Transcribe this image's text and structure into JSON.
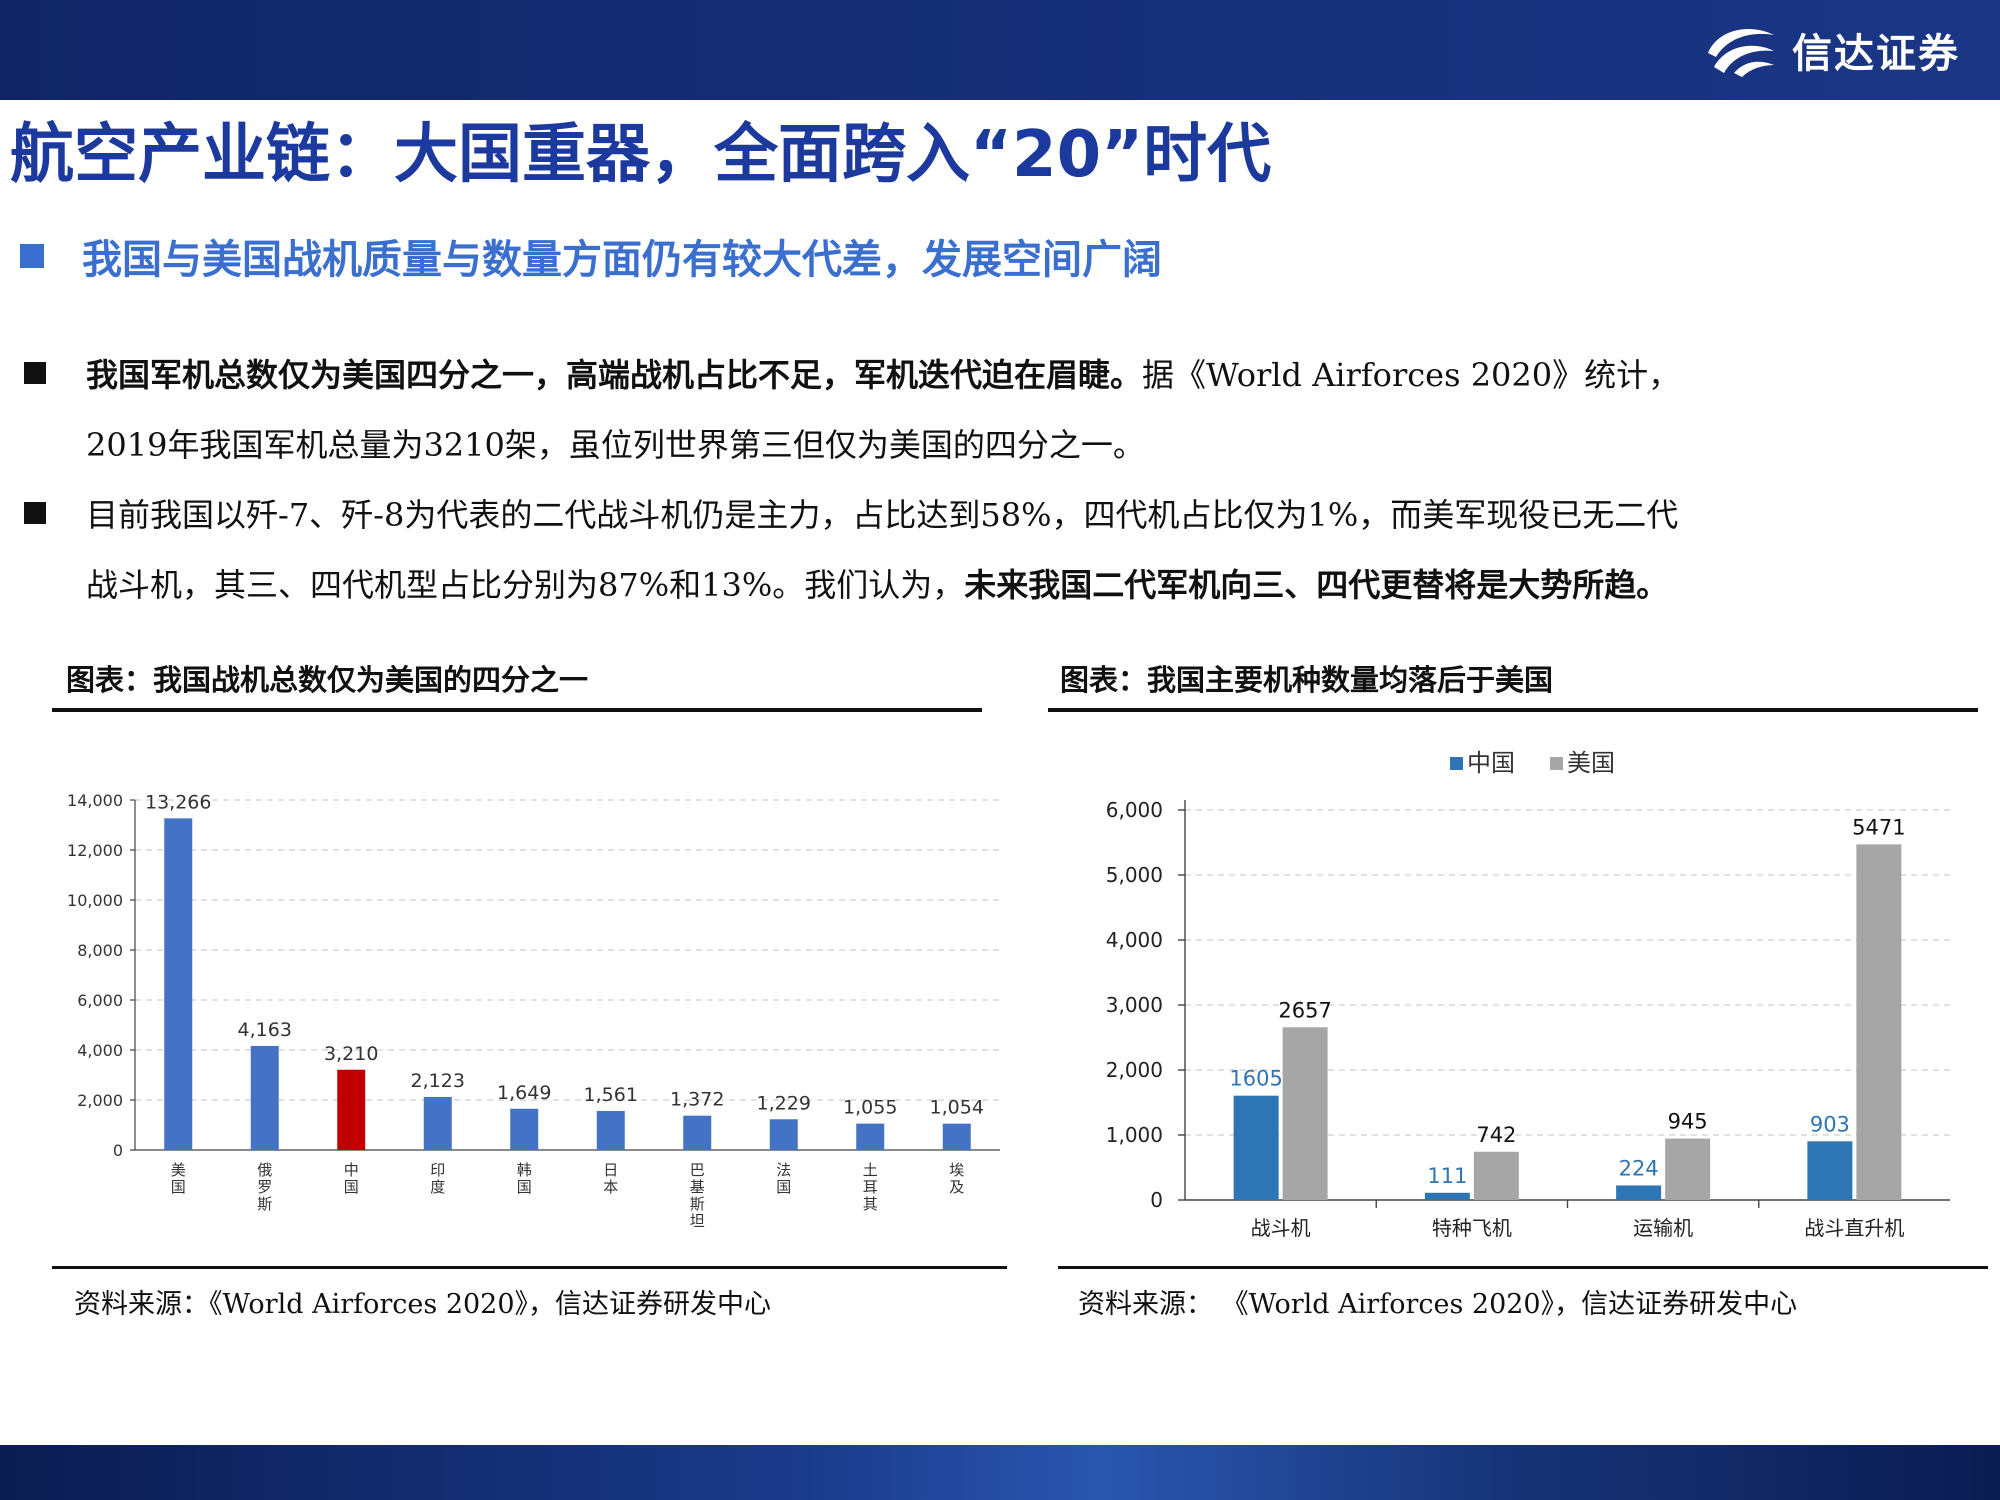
{
  "header": {
    "brand": "信达证券"
  },
  "page_title": "航空产业链：大国重器，全面跨入“20”时代",
  "subtitle": "我国与美国战机质量与数量方面仍有较大代差，发展空间广阔",
  "bullets": [
    {
      "line1_bold": "我国军机总数仅为美国四分之一，高端战机占比不足，军机迭代迫在眉睫。",
      "line1_rest": "据《World Airforces 2020》统计，",
      "line2": "2019年我国军机总量为3210架，虽位列世界第三但仅为美国的四分之一。"
    },
    {
      "line1": "目前我国以歼-7、歼-8为代表的二代战斗机仍是主力，占比达到58%，四代机占比仅为1%，而美军现役已无二代",
      "line2_plain": "战斗机，其三、四代机型占比分别为87%和13%。我们认为，",
      "line2_bold": "未来我国二代军机向三、四代更替将是大势所趋。"
    }
  ],
  "charts": {
    "left_caption": "图表：我国战机总数仅为美国的四分之一",
    "left_source": "资料来源：《World Airforces 2020》，信达证券研发中心",
    "right_caption": "图表：我国主要机种数量均落后于美国",
    "right_source": "资料来源：  《World Airforces 2020》，信达证券研发中心"
  },
  "colors": {
    "blue": "#4472c4",
    "red": "#c00000",
    "china_blue": "#2e75b6",
    "us_gray": "#a6a6a6",
    "title_blue": "#1c3a9e"
  },
  "chart_data": [
    {
      "type": "bar",
      "categories": [
        "美国",
        "俄罗斯",
        "中国",
        "印度",
        "韩国",
        "日本",
        "巴基斯坦",
        "法国",
        "土耳其",
        "埃及"
      ],
      "values": [
        13266,
        4163,
        3210,
        2123,
        1649,
        1561,
        1372,
        1229,
        1055,
        1054
      ],
      "value_labels": [
        "13,266",
        "4,163",
        "3,210",
        "2,123",
        "1,649",
        "1,561",
        "1,372",
        "1,229",
        "1,055",
        "1,054"
      ],
      "highlight_index": 2,
      "yticks": [
        "0",
        "2,000",
        "4,000",
        "6,000",
        "8,000",
        "10,000",
        "12,000",
        "14,000"
      ],
      "ylim": [
        0,
        14000
      ],
      "grid": true
    },
    {
      "type": "bar",
      "categories": [
        "战斗机",
        "特种飞机",
        "运输机",
        "战斗直升机"
      ],
      "series": [
        {
          "name": "中国",
          "values": [
            1605,
            111,
            224,
            903
          ]
        },
        {
          "name": "美国",
          "values": [
            2657,
            742,
            945,
            5471
          ]
        }
      ],
      "yticks": [
        "0",
        "1,000",
        "2,000",
        "3,000",
        "4,000",
        "5,000",
        "6,000"
      ],
      "ylim": [
        0,
        6000
      ],
      "legend": "top-center",
      "grid": true
    }
  ]
}
